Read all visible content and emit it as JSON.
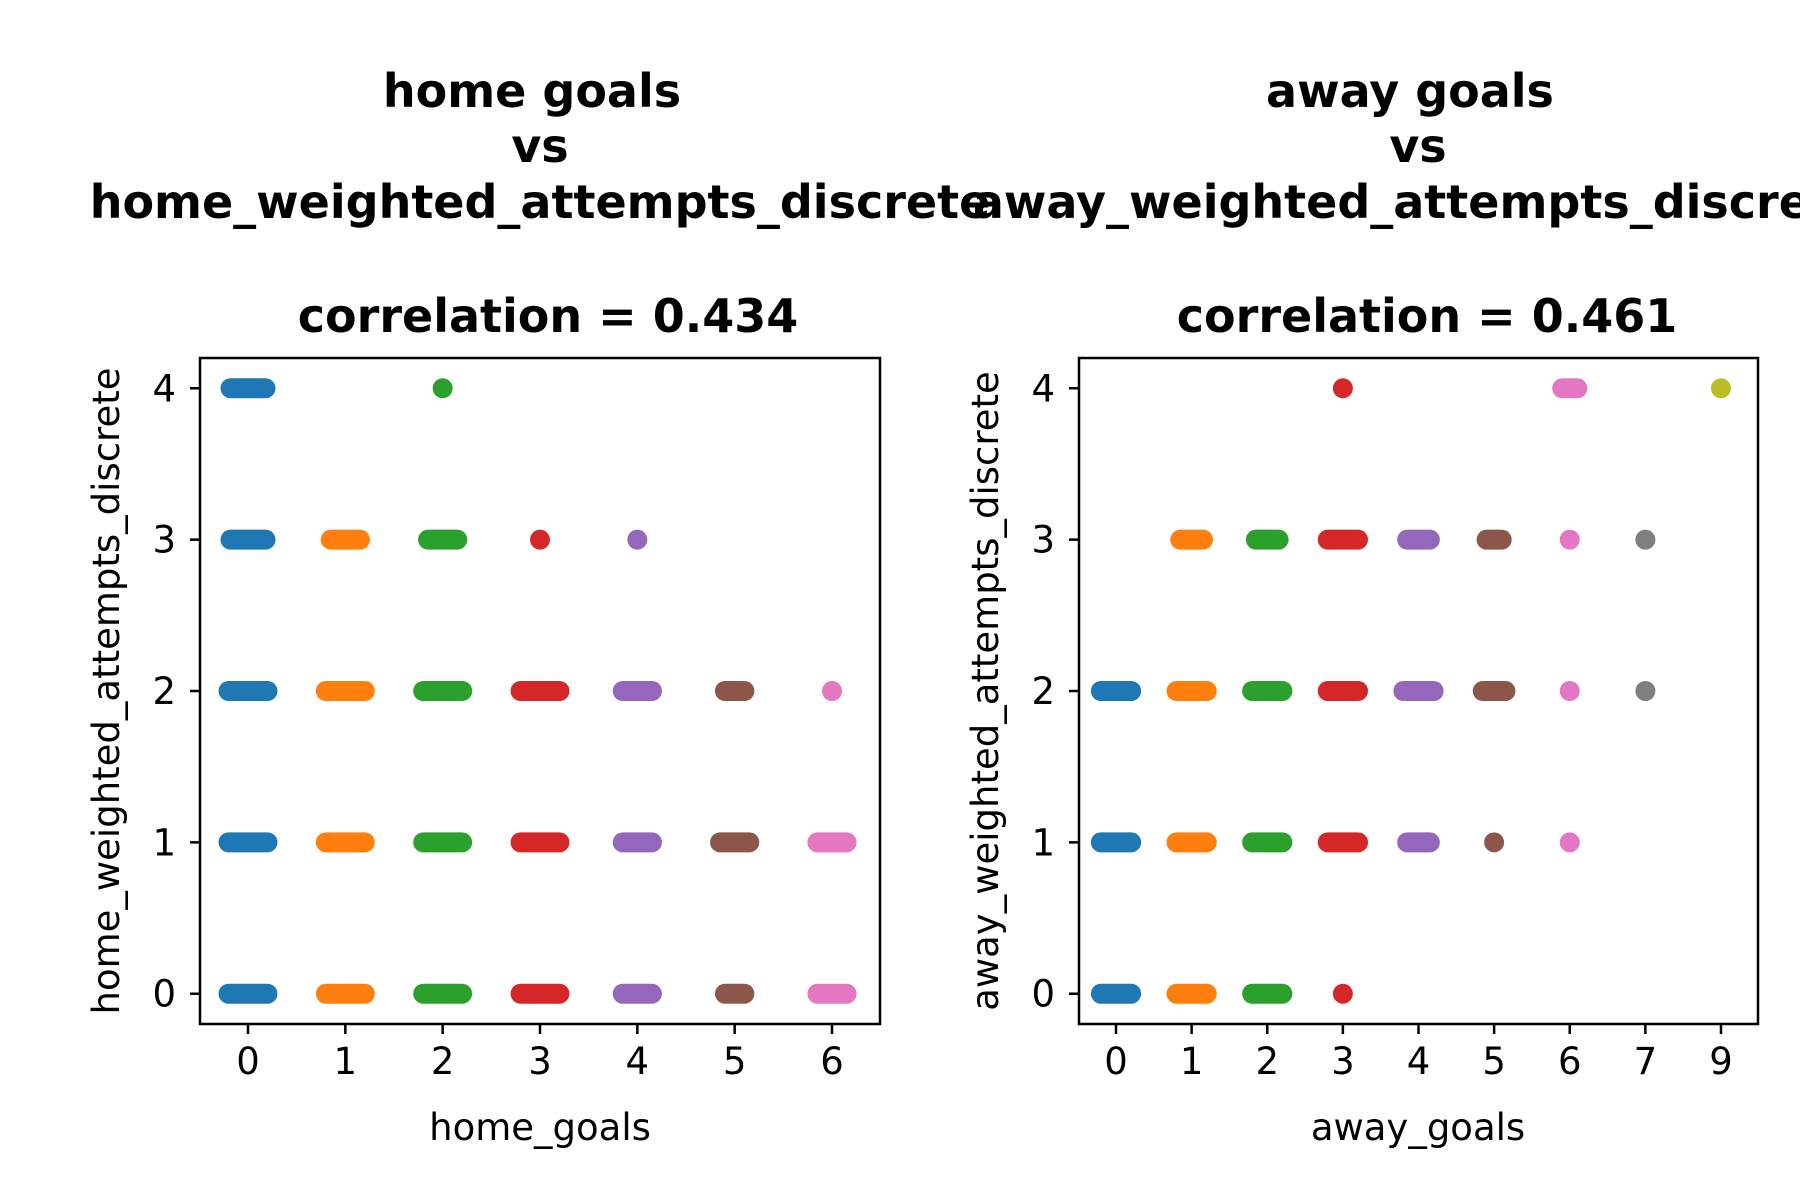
{
  "chart_data": [
    {
      "type": "scatter",
      "title_lines": [
        "home goals",
        "vs",
        "home_weighted_attempts_discrete"
      ],
      "subtitle": "correlation = 0.434",
      "xlabel": "home_goals",
      "ylabel": "home_weighted_attempts_discrete",
      "x_categories": [
        "0",
        "1",
        "2",
        "3",
        "4",
        "5",
        "6"
      ],
      "y_ticks": [
        "0",
        "1",
        "2",
        "3",
        "4"
      ],
      "ylim": [
        -0.2,
        4.2
      ],
      "grid": false,
      "legend": "none",
      "colors": [
        "#1f77b4",
        "#ff7f0e",
        "#2ca02c",
        "#d62728",
        "#9467bd",
        "#8c564b",
        "#e377c2"
      ],
      "groups": [
        {
          "x": "0",
          "y": [
            4,
            3,
            2,
            1,
            0
          ],
          "spread": [
            0.18,
            0.18,
            0.2,
            0.2,
            0.2
          ]
        },
        {
          "x": "1",
          "y": [
            3,
            2,
            1,
            0
          ],
          "spread": [
            0.15,
            0.2,
            0.2,
            0.2
          ]
        },
        {
          "x": "2",
          "y": [
            4,
            3,
            2,
            1,
            0
          ],
          "spread": [
            0,
            0.15,
            0.2,
            0.2,
            0.2
          ]
        },
        {
          "x": "3",
          "y": [
            3,
            2,
            1,
            0
          ],
          "spread": [
            0,
            0.2,
            0.2,
            0.2
          ]
        },
        {
          "x": "4",
          "y": [
            3,
            2,
            1,
            0
          ],
          "spread": [
            0,
            0.15,
            0.15,
            0.15
          ]
        },
        {
          "x": "5",
          "y": [
            2,
            1,
            0
          ],
          "spread": [
            0.1,
            0.15,
            0.1
          ]
        },
        {
          "x": "6",
          "y": [
            2,
            1,
            0
          ],
          "spread": [
            0,
            0.15,
            0.15
          ]
        }
      ]
    },
    {
      "type": "scatter",
      "title_lines": [
        "away goals",
        "vs",
        "away_weighted_attempts_discrete"
      ],
      "subtitle": "correlation = 0.461",
      "xlabel": "away_goals",
      "ylabel": "away_weighted_attempts_discrete",
      "x_categories": [
        "0",
        "1",
        "2",
        "3",
        "4",
        "5",
        "6",
        "7",
        "9"
      ],
      "y_ticks": [
        "0",
        "1",
        "2",
        "3",
        "4"
      ],
      "ylim": [
        -0.2,
        4.2
      ],
      "grid": false,
      "legend": "none",
      "colors": [
        "#1f77b4",
        "#ff7f0e",
        "#2ca02c",
        "#d62728",
        "#9467bd",
        "#8c564b",
        "#e377c2",
        "#7f7f7f",
        "#bcbd22"
      ],
      "groups": [
        {
          "x": "0",
          "y": [
            2,
            1,
            0
          ],
          "spread": [
            0.2,
            0.2,
            0.2
          ]
        },
        {
          "x": "1",
          "y": [
            3,
            2,
            1,
            0
          ],
          "spread": [
            0.15,
            0.2,
            0.2,
            0.2
          ]
        },
        {
          "x": "2",
          "y": [
            3,
            2,
            1,
            0
          ],
          "spread": [
            0.15,
            0.2,
            0.2,
            0.2
          ]
        },
        {
          "x": "3",
          "y": [
            4,
            3,
            2,
            1,
            0
          ],
          "spread": [
            0,
            0.2,
            0.2,
            0.2,
            0
          ]
        },
        {
          "x": "4",
          "y": [
            3,
            2,
            1
          ],
          "spread": [
            0.15,
            0.2,
            0.15
          ]
        },
        {
          "x": "5",
          "y": [
            3,
            2,
            1
          ],
          "spread": [
            0.1,
            0.15,
            0
          ]
        },
        {
          "x": "6",
          "y": [
            4,
            3,
            2,
            1
          ],
          "spread": [
            0.1,
            0,
            0,
            0
          ]
        },
        {
          "x": "7",
          "y": [
            3,
            2
          ],
          "spread": [
            0,
            0
          ]
        },
        {
          "x": "9",
          "y": [
            4
          ],
          "spread": [
            0
          ]
        }
      ]
    }
  ]
}
